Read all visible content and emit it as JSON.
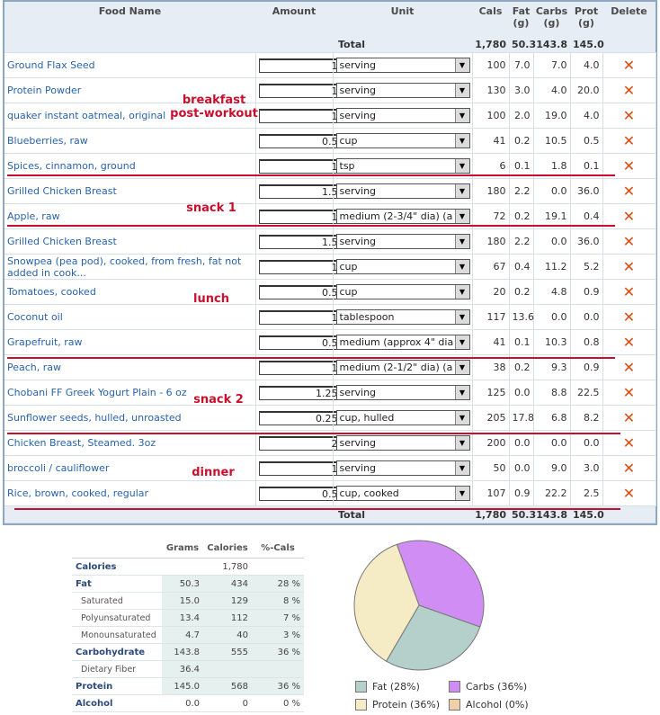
{
  "headers": {
    "food": "Food Name",
    "amount": "Amount",
    "unit": "Unit",
    "cals": "Cals",
    "fat": "Fat\n(g)",
    "carbs": "Carbs\n(g)",
    "prot": "Prot\n(g)",
    "delete": "Delete"
  },
  "total": {
    "label": "Total",
    "cals": "1,780",
    "fat": "50.3",
    "carbs": "143.8",
    "prot": "145.0"
  },
  "delete_glyph": "✕",
  "select_arrow": "▼",
  "foods": [
    {
      "name": "Ground Flax Seed",
      "amount": "1",
      "unit": "serving",
      "cals": "100",
      "fat": "7.0",
      "carbs": "7.0",
      "prot": "4.0"
    },
    {
      "name": "Protein Powder",
      "amount": "1",
      "unit": "serving",
      "cals": "130",
      "fat": "3.0",
      "carbs": "4.0",
      "prot": "20.0"
    },
    {
      "name": "quaker instant oatmeal, original",
      "amount": "1",
      "unit": "serving",
      "cals": "100",
      "fat": "2.0",
      "carbs": "19.0",
      "prot": "4.0"
    },
    {
      "name": "Blueberries, raw",
      "amount": "0.5",
      "unit": "cup",
      "cals": "41",
      "fat": "0.2",
      "carbs": "10.5",
      "prot": "0.5"
    },
    {
      "name": "Spices, cinnamon, ground",
      "amount": "1",
      "unit": "tsp",
      "cals": "6",
      "fat": "0.1",
      "carbs": "1.8",
      "prot": "0.1"
    },
    {
      "name": "Grilled Chicken Breast",
      "amount": "1.5",
      "unit": "serving",
      "cals": "180",
      "fat": "2.2",
      "carbs": "0.0",
      "prot": "36.0"
    },
    {
      "name": "Apple, raw",
      "amount": "1",
      "unit": "medium (2-3/4\" dia) (a",
      "cals": "72",
      "fat": "0.2",
      "carbs": "19.1",
      "prot": "0.4"
    },
    {
      "name": "Grilled Chicken Breast",
      "amount": "1.5",
      "unit": "serving",
      "cals": "180",
      "fat": "2.2",
      "carbs": "0.0",
      "prot": "36.0"
    },
    {
      "name": "Snowpea (pea pod), cooked, from fresh, fat not added in cook...",
      "amount": "1",
      "unit": "cup",
      "cals": "67",
      "fat": "0.4",
      "carbs": "11.2",
      "prot": "5.2"
    },
    {
      "name": "Tomatoes, cooked",
      "amount": "0.5",
      "unit": "cup",
      "cals": "20",
      "fat": "0.2",
      "carbs": "4.8",
      "prot": "0.9"
    },
    {
      "name": "Coconut oil",
      "amount": "1",
      "unit": "tablespoon",
      "cals": "117",
      "fat": "13.6",
      "carbs": "0.0",
      "prot": "0.0"
    },
    {
      "name": "Grapefruit, raw",
      "amount": "0.5",
      "unit": "medium (approx 4\" dia",
      "cals": "41",
      "fat": "0.1",
      "carbs": "10.3",
      "prot": "0.8"
    },
    {
      "name": "Peach, raw",
      "amount": "1",
      "unit": "medium (2-1/2\" dia) (a",
      "cals": "38",
      "fat": "0.2",
      "carbs": "9.3",
      "prot": "0.9"
    },
    {
      "name": "Chobani FF Greek Yogurt Plain - 6 oz",
      "amount": "1.25",
      "unit": "serving",
      "cals": "125",
      "fat": "0.0",
      "carbs": "8.8",
      "prot": "22.5"
    },
    {
      "name": "Sunflower seeds, hulled, unroasted",
      "amount": "0.25",
      "unit": "cup, hulled",
      "cals": "205",
      "fat": "17.8",
      "carbs": "6.8",
      "prot": "8.2"
    },
    {
      "name": "Chicken Breast, Steamed. 3oz",
      "amount": "2",
      "unit": "serving",
      "cals": "200",
      "fat": "0.0",
      "carbs": "0.0",
      "prot": "0.0"
    },
    {
      "name": "broccoli / cauliflower",
      "amount": "1",
      "unit": "serving",
      "cals": "50",
      "fat": "0.0",
      "carbs": "9.0",
      "prot": "3.0"
    },
    {
      "name": "Rice, brown, cooked, regular",
      "amount": "0.5",
      "unit": "cup, cooked",
      "cals": "107",
      "fat": "0.9",
      "carbs": "22.2",
      "prot": "2.5"
    }
  ],
  "annotations": {
    "breakfast": "breakfast\npost-workout",
    "snack1": "snack 1",
    "lunch": "lunch",
    "snack2": "snack 2",
    "dinner": "dinner"
  },
  "nutrition": {
    "headers": {
      "grams": "Grams",
      "calories": "Calories",
      "pct": "%-Cals"
    },
    "rows": [
      {
        "label": "Calories",
        "grams": "",
        "calories": "1,780",
        "pct": "",
        "sub": false,
        "shade": false
      },
      {
        "label": "Fat",
        "grams": "50.3",
        "calories": "434",
        "pct": "28 %",
        "sub": false,
        "shade": true
      },
      {
        "label": "Saturated",
        "grams": "15.0",
        "calories": "129",
        "pct": "8 %",
        "sub": true,
        "shade": true
      },
      {
        "label": "Polyunsaturated",
        "grams": "13.4",
        "calories": "112",
        "pct": "7 %",
        "sub": true,
        "shade": true
      },
      {
        "label": "Monounsaturated",
        "grams": "4.7",
        "calories": "40",
        "pct": "3 %",
        "sub": true,
        "shade": true
      },
      {
        "label": "Carbohydrate",
        "grams": "143.8",
        "calories": "555",
        "pct": "36 %",
        "sub": false,
        "shade": true
      },
      {
        "label": "Dietary Fiber",
        "grams": "36.4",
        "calories": "",
        "pct": "",
        "sub": true,
        "shade": true
      },
      {
        "label": "Protein",
        "grams": "145.0",
        "calories": "568",
        "pct": "36 %",
        "sub": false,
        "shade": true
      },
      {
        "label": "Alcohol",
        "grams": "0.0",
        "calories": "0",
        "pct": "0 %",
        "sub": false,
        "shade": false
      }
    ]
  },
  "chart_data": {
    "type": "pie",
    "categories": [
      "Fat",
      "Carbs",
      "Protein",
      "Alcohol"
    ],
    "values": [
      28,
      36,
      36,
      0
    ],
    "colors": [
      "#b5cfcb",
      "#d08ef5",
      "#f5ecc6",
      "#f1d0a9"
    ],
    "legend": [
      "Fat  (28%)",
      "Carbs  (36%)",
      "Protein  (36%)",
      "Alcohol  (0%)"
    ]
  }
}
